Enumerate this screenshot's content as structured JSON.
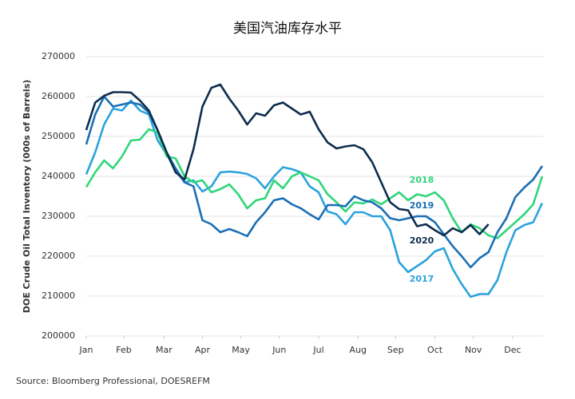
{
  "chart_data": {
    "type": "line",
    "title": "美国汽油库存水平",
    "ylabel": "DOE Crude Oil Total Inventory (000s of Barrels)",
    "source": "Source: Bloomberg Professional, DOESREFM",
    "x": [
      0,
      1,
      2,
      3,
      4,
      5,
      6,
      7,
      8,
      9,
      10,
      11,
      12,
      13,
      14,
      15,
      16,
      17,
      18,
      19,
      20,
      21,
      22,
      23,
      24,
      25,
      26,
      27,
      28,
      29,
      30,
      31,
      32,
      33,
      34,
      35,
      36,
      37,
      38,
      39,
      40,
      41,
      42,
      43,
      44,
      45,
      46,
      47,
      48,
      49,
      50,
      51
    ],
    "xlim": [
      0,
      51.1
    ],
    "xticks": [
      {
        "value": 0,
        "label": "Jan"
      },
      {
        "value": 4.2,
        "label": "Feb"
      },
      {
        "value": 8.7,
        "label": "Mar"
      },
      {
        "value": 13,
        "label": "Apr"
      },
      {
        "value": 17.3,
        "label": "May"
      },
      {
        "value": 21.6,
        "label": "Jun"
      },
      {
        "value": 26,
        "label": "Jul"
      },
      {
        "value": 30.4,
        "label": "Aug"
      },
      {
        "value": 34.6,
        "label": "Sep"
      },
      {
        "value": 39,
        "label": "Oct"
      },
      {
        "value": 43.3,
        "label": "Nov"
      },
      {
        "value": 47.7,
        "label": "Dec"
      }
    ],
    "ylim": [
      200000,
      270000
    ],
    "yticks": [
      200000,
      210000,
      220000,
      230000,
      240000,
      250000,
      260000,
      270000
    ],
    "grid": true,
    "series": [
      {
        "name": "2017",
        "color": "#2aa3dc",
        "values": [
          240500,
          246000,
          253000,
          257000,
          256500,
          259000,
          256500,
          255500,
          249000,
          245500,
          241500,
          238500,
          239000,
          236200,
          237500,
          241000,
          241200,
          241000,
          240600,
          239500,
          237000,
          240000,
          242300,
          241800,
          241000,
          237500,
          236000,
          231200,
          230500,
          228000,
          231000,
          231000,
          230000,
          230000,
          226500,
          218500,
          216000,
          217500,
          219000,
          221200,
          222000,
          216800,
          213000,
          209800,
          210500,
          210500,
          214000,
          221000,
          226500,
          227800,
          228500,
          233300
        ]
      },
      {
        "name": "2018",
        "color": "#2fd67a",
        "values": [
          237300,
          241000,
          244000,
          242000,
          245000,
          249000,
          249200,
          251800,
          251000,
          245000,
          244500,
          240000,
          238500,
          239000,
          236000,
          236800,
          238000,
          235500,
          232000,
          234000,
          234500,
          239000,
          237000,
          240000,
          241000,
          240000,
          239000,
          235500,
          233500,
          231200,
          233500,
          233200,
          234200,
          233000,
          234500,
          236000,
          234000,
          235500,
          235000,
          236000,
          234000,
          229500,
          226000,
          228000,
          227000,
          225200,
          224500,
          226500,
          228500,
          230500,
          233000,
          240000
        ]
      },
      {
        "name": "2019",
        "color": "#1a6fb5",
        "values": [
          248000,
          255500,
          260000,
          257500,
          258000,
          258500,
          258000,
          256000,
          251500,
          246000,
          242000,
          238500,
          237500,
          229000,
          228000,
          226000,
          226800,
          226000,
          225000,
          228500,
          231000,
          234000,
          234500,
          233000,
          232000,
          230500,
          229200,
          232800,
          232800,
          232500,
          235000,
          234000,
          233500,
          232000,
          229500,
          229000,
          229500,
          230000,
          230000,
          228500,
          225500,
          222500,
          220000,
          217200,
          219500,
          221000,
          226000,
          229500,
          234800,
          237200,
          239200,
          242600
        ]
      },
      {
        "name": "2020",
        "color": "#0d2d4d",
        "values": [
          251600,
          258500,
          260200,
          261100,
          261100,
          261000,
          259000,
          256500,
          251500,
          246000,
          241000,
          239200,
          246800,
          257500,
          262200,
          263000,
          259500,
          256500,
          253000,
          255800,
          255200,
          257800,
          258500,
          257000,
          255500,
          256200,
          251800,
          248500,
          247000,
          247500,
          247800,
          246800,
          243500,
          238500,
          233500,
          231800,
          231500,
          227500,
          228000,
          226500,
          225200,
          227000,
          226000,
          227800,
          225500,
          228000,
          null,
          null,
          null,
          null,
          null,
          null
        ]
      }
    ]
  }
}
